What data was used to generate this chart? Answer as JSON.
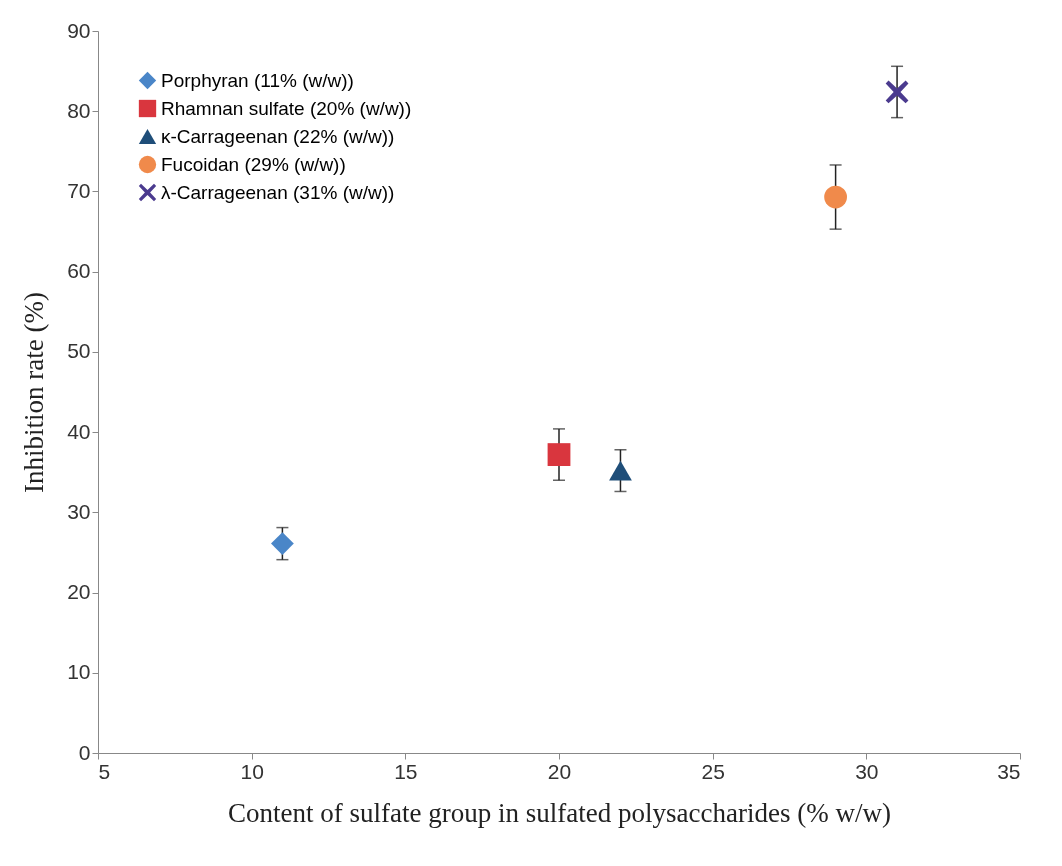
{
  "chart_data": {
    "type": "scatter",
    "xlabel": "Content of sulfate group in sulfated polysaccharides (% w/w)",
    "ylabel": "Inhibition rate (%)",
    "xlim": [
      5,
      35
    ],
    "xticks": [
      5,
      10,
      15,
      20,
      25,
      30,
      35
    ],
    "ylim": [
      0,
      90
    ],
    "yticks": [
      0,
      10,
      20,
      30,
      40,
      50,
      60,
      70,
      80,
      90
    ],
    "grid": false,
    "legend": "top left",
    "series": [
      {
        "name": "Porphyran (11% (w/w))",
        "color": "#4a86c8",
        "marker": "diamond",
        "x": [
          11
        ],
        "values": [
          26.1
        ],
        "errors": [
          2
        ]
      },
      {
        "name": "Rhamnan sulfate (20% (w/w))",
        "color": "#d9363e",
        "marker": "square",
        "x": [
          20
        ],
        "values": [
          37.2
        ],
        "errors": [
          3.2
        ]
      },
      {
        "name": "κ-Carrageenan (22% (w/w))",
        "color": "#1f4e79",
        "marker": "triangle",
        "x": [
          22
        ],
        "values": [
          35.2
        ],
        "errors": [
          2.6
        ]
      },
      {
        "name": "Fucoidan (29% (w/w))",
        "color": "#f08a4b",
        "marker": "circle",
        "x": [
          29
        ],
        "values": [
          69.3
        ],
        "errors": [
          4
        ]
      },
      {
        "name": "λ-Carrageenan (31% (w/w))",
        "color": "#4b3b8f",
        "marker": "cross",
        "x": [
          31
        ],
        "values": [
          82.4
        ],
        "errors": [
          3.2
        ]
      }
    ]
  }
}
